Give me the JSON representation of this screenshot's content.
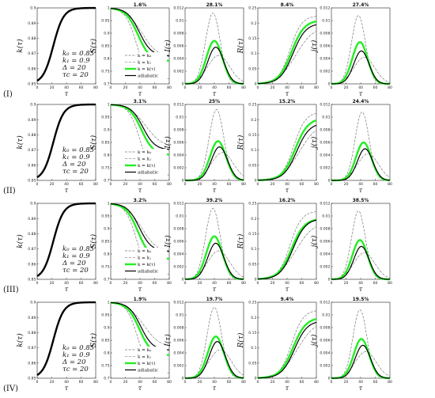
{
  "figure": {
    "row_labels": [
      "(I)",
      "(II)",
      "(III)",
      "(IV)"
    ],
    "panel_ylabels": [
      "k(τ)",
      "S(τ)",
      "I(τ)",
      "R(τ)",
      "j(τ)"
    ],
    "xlabel": "τ",
    "annotation": [
      "k₀ = 0.85",
      "k₁ = 0.9",
      "Δ = 20",
      "τc = 20"
    ],
    "legend": [
      "k = k₀",
      "k = k₁",
      "k = k(τ)",
      "adiabatic"
    ],
    "colors": {
      "kt": "#22ee22",
      "adiabatic": "#000000",
      "k0": "#777777",
      "k1": "#555555"
    }
  },
  "chart_data": [
    {
      "type": "line",
      "row": "(I)",
      "panel_titles": [
        "",
        "1.6%",
        "28.1%",
        "8.4%",
        "27.4%"
      ],
      "k_curve": {
        "x": [
          0,
          20,
          40,
          60,
          80
        ],
        "y": [
          0.85,
          0.86,
          0.89,
          0.899,
          0.9
        ],
        "ylim": [
          0.85,
          0.9
        ]
      },
      "S": {
        "ylim": [
          0.7,
          1
        ],
        "final": {
          "k0": 0.72,
          "k1": 0.8,
          "kt": 0.79,
          "adiabatic": 0.81
        }
      },
      "I": {
        "ylim": [
          0,
          0.012
        ],
        "peak": {
          "k0": 0.0112,
          "k1": 0.0045,
          "kt": 0.0068,
          "adiabatic": 0.0058
        },
        "peak_tau": 40
      },
      "R": {
        "ylim": [
          0,
          0.25
        ],
        "final": {
          "k0": 0.225,
          "k1": 0.19,
          "kt": 0.21,
          "adiabatic": 0.2
        }
      },
      "j": {
        "ylim": [
          0,
          0.012
        ],
        "peak": {
          "k0": 0.0108,
          "k1": 0.0042,
          "kt": 0.0066,
          "adiabatic": 0.0052
        },
        "peak_tau": 40
      }
    },
    {
      "type": "line",
      "row": "(II)",
      "panel_titles": [
        "",
        "3.1%",
        "25%",
        "15.2%",
        "24.4%"
      ],
      "k_curve": {
        "x": [
          0,
          20,
          40,
          60,
          80
        ],
        "y": [
          0.85,
          0.86,
          0.89,
          0.899,
          0.9
        ],
        "ylim": [
          0.85,
          0.9
        ]
      },
      "S": {
        "ylim": [
          0.7,
          1
        ],
        "final": {
          "k0": 0.72,
          "k1": 0.83,
          "kt": 0.8,
          "adiabatic": 0.82
        }
      },
      "I": {
        "ylim": [
          0,
          0.012
        ],
        "peak": {
          "k0": 0.0112,
          "k1": 0.0044,
          "kt": 0.0062,
          "adiabatic": 0.0053
        },
        "peak_tau": 45
      },
      "R": {
        "ylim": [
          0,
          0.25
        ],
        "final": {
          "k0": 0.225,
          "k1": 0.19,
          "kt": 0.205,
          "adiabatic": 0.19
        }
      },
      "j": {
        "ylim": [
          0,
          0.012
        ],
        "peak": {
          "k0": 0.0108,
          "k1": 0.0042,
          "kt": 0.006,
          "adiabatic": 0.005
        },
        "peak_tau": 45
      }
    },
    {
      "type": "line",
      "row": "(III)",
      "panel_titles": [
        "",
        "3.2%",
        "39.2%",
        "16.2%",
        "38.5%"
      ],
      "k_curve": {
        "x": [
          0,
          20,
          40,
          60,
          80
        ],
        "y": [
          0.85,
          0.86,
          0.89,
          0.899,
          0.9
        ],
        "ylim": [
          0.85,
          0.9
        ]
      },
      "S": {
        "ylim": [
          0.7,
          1
        ],
        "final": {
          "k0": 0.72,
          "k1": 0.8,
          "kt": 0.78,
          "adiabatic": 0.81
        }
      },
      "I": {
        "ylim": [
          0,
          0.012
        ],
        "peak": {
          "k0": 0.0112,
          "k1": 0.0045,
          "kt": 0.0068,
          "adiabatic": 0.0057
        },
        "peak_tau": 40
      },
      "R": {
        "ylim": [
          0,
          0.25
        ],
        "final": {
          "k0": 0.225,
          "k1": 0.19,
          "kt": 0.2,
          "adiabatic": 0.2
        }
      },
      "j": {
        "ylim": [
          0,
          0.012
        ],
        "peak": {
          "k0": 0.0108,
          "k1": 0.0042,
          "kt": 0.0062,
          "adiabatic": 0.0052
        },
        "peak_tau": 40
      }
    },
    {
      "type": "line",
      "row": "(IV)",
      "panel_titles": [
        "",
        "1.9%",
        "19.7%",
        "9.4%",
        "19.5%"
      ],
      "k_curve": {
        "x": [
          0,
          20,
          40,
          60,
          80
        ],
        "y": [
          0.85,
          0.86,
          0.89,
          0.899,
          0.9
        ],
        "ylim": [
          0.85,
          0.9
        ]
      },
      "S": {
        "ylim": [
          0.7,
          1
        ],
        "final": {
          "k0": 0.72,
          "k1": 0.82,
          "kt": 0.79,
          "adiabatic": 0.81
        }
      },
      "I": {
        "ylim": [
          0,
          0.012
        ],
        "peak": {
          "k0": 0.0112,
          "k1": 0.0045,
          "kt": 0.0066,
          "adiabatic": 0.0058
        },
        "peak_tau": 42
      },
      "R": {
        "ylim": [
          0,
          0.25
        ],
        "final": {
          "k0": 0.225,
          "k1": 0.19,
          "kt": 0.2,
          "adiabatic": 0.19
        }
      },
      "j": {
        "ylim": [
          0,
          0.012
        ],
        "peak": {
          "k0": 0.0108,
          "k1": 0.0042,
          "kt": 0.0062,
          "adiabatic": 0.0052
        },
        "peak_tau": 42
      }
    }
  ]
}
